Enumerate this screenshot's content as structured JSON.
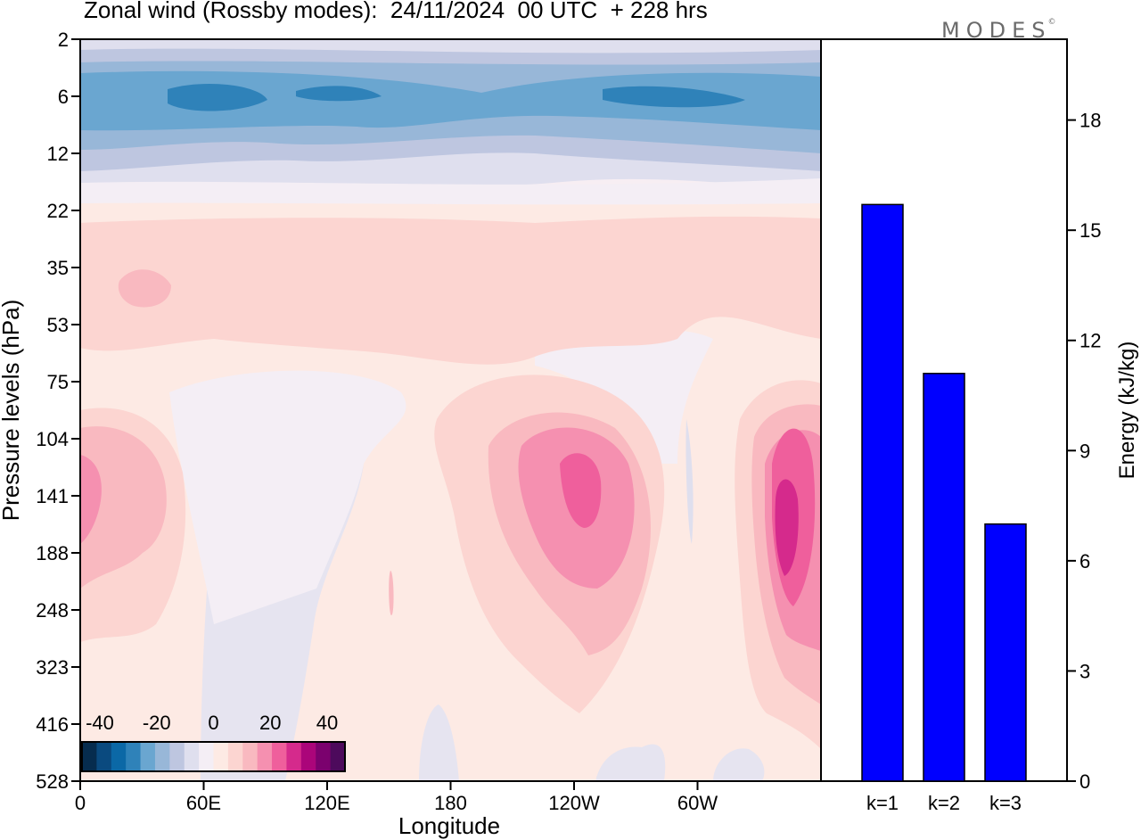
{
  "title": "Zonal wind (Rossby modes):  24/11/2024  00 UTC  + 228 hrs",
  "brand": "MODES",
  "brand_mark": "©",
  "chart_data": [
    {
      "type": "heatmap",
      "title": "Zonal wind (Rossby modes):  24/11/2024  00 UTC  + 228 hrs",
      "xlabel": "Longitude",
      "ylabel": "Pressure levels (hPa)",
      "x_ticks": [
        "0",
        "60E",
        "120E",
        "180",
        "120W",
        "60W"
      ],
      "y_ticks": [
        "2",
        "6",
        "12",
        "22",
        "35",
        "53",
        "75",
        "104",
        "141",
        "188",
        "248",
        "323",
        "416",
        "528"
      ],
      "colorbar": {
        "tick_labels": [
          "-40",
          "-20",
          "0",
          "20",
          "40"
        ],
        "range": [
          -40,
          40
        ],
        "colors": [
          "#062c4e",
          "#0a4a7f",
          "#0b68a6",
          "#2f82b9",
          "#6aa6d0",
          "#98b7d8",
          "#bec6e0",
          "#dfdfee",
          "#f4eef5",
          "#fdeae4",
          "#fcd5d1",
          "#f9b9c0",
          "#f590b0",
          "#ef5f9c",
          "#d52a8c",
          "#ab057a",
          "#7b016e",
          "#4d0a5c"
        ]
      },
      "features": [
        {
          "label": "easterly jet core",
          "level": "6 hPa",
          "value": -30
        },
        {
          "label": "westerly maximum near 120W",
          "level": "141 hPa",
          "value": 25
        },
        {
          "label": "westerly maximum near 30W",
          "level": "160 hPa",
          "value": 30
        },
        {
          "label": "westerly maximum near 0",
          "level": "141 hPa",
          "value": 15
        }
      ]
    },
    {
      "type": "bar",
      "categories": [
        "k=1",
        "k=2",
        "k=3"
      ],
      "values": [
        15.7,
        11.1,
        7.0
      ],
      "ylabel": "Energy (kJ/kg)",
      "y_ticks": [
        "0",
        "3",
        "6",
        "9",
        "12",
        "15",
        "18"
      ],
      "ylim": [
        0,
        20.2
      ],
      "bar_color": "#0000ff"
    }
  ]
}
